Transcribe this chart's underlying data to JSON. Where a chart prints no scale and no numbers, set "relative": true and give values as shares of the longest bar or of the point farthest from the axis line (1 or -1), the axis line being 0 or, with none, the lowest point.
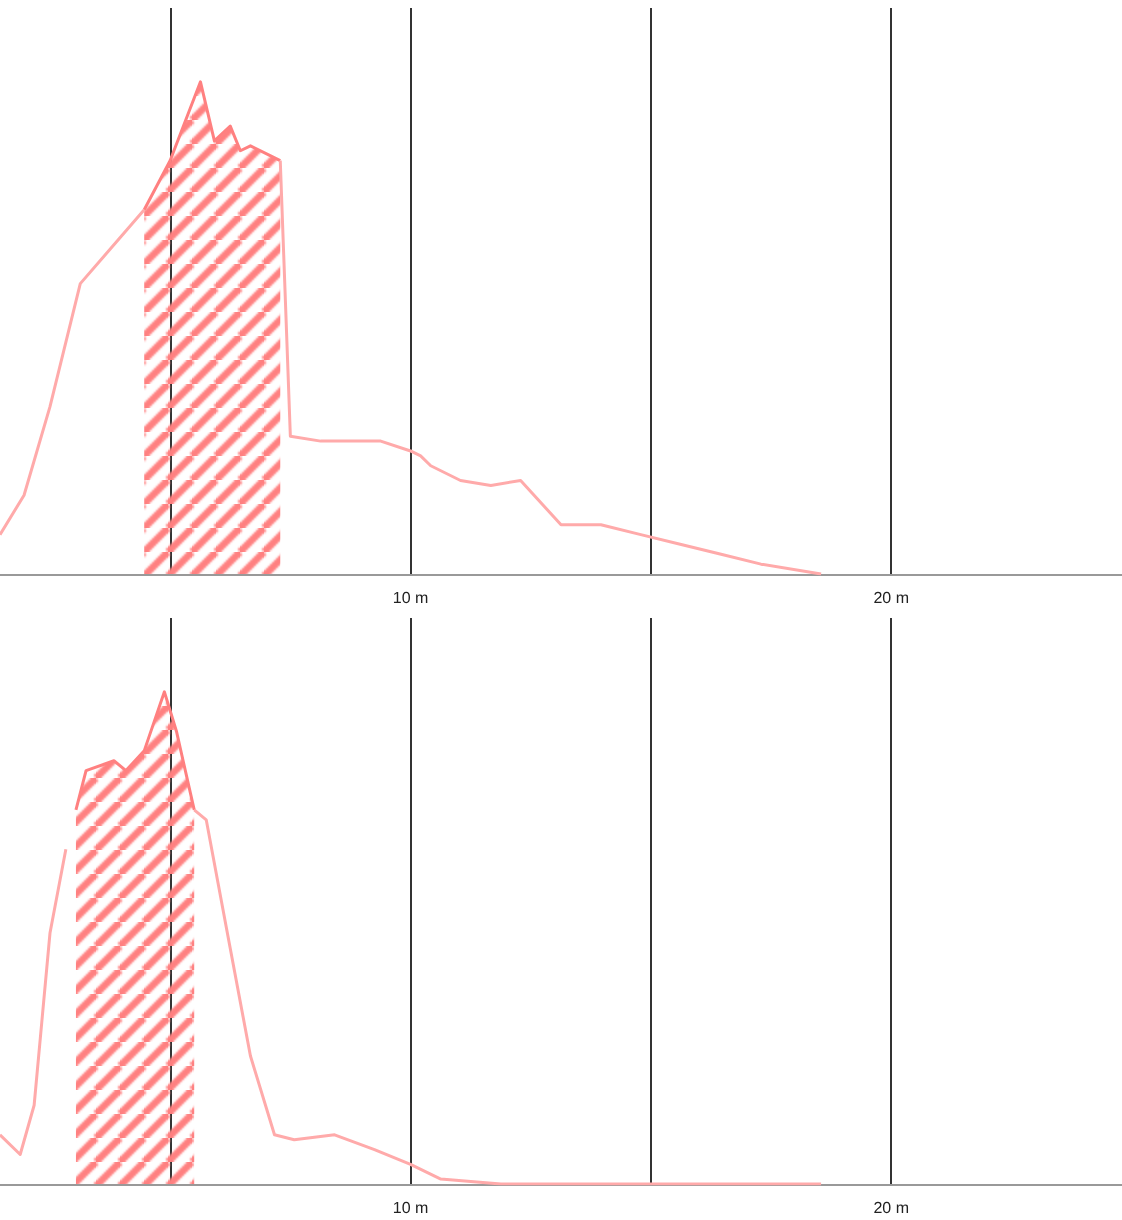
{
  "chart_data": [
    {
      "type": "line",
      "relative": true,
      "xlim": [
        1.46,
        24.8
      ],
      "xticks": [
        {
          "value": 5,
          "label": null
        },
        {
          "value": 10,
          "label": "10 m"
        },
        {
          "value": 15,
          "label": null
        },
        {
          "value": 20,
          "label": "20 m"
        }
      ],
      "grid": "x",
      "marker": "none",
      "line_style": "solid",
      "series": [
        {
          "color": "#ffaaaa",
          "x": [
            1.46,
            1.96,
            2.5,
            3.13,
            4.46,
            5,
            5.63,
            5.92,
            6.25,
            6.46,
            6.67,
            7.08,
            7.29,
            7.5,
            8.13,
            9.38,
            10,
            10.21,
            10.42,
            11.04,
            11.67,
            12.29,
            13.13,
            13.96,
            14.79,
            15.63,
            16.46,
            17.29,
            18.54
          ],
          "values": [
            0.08,
            0.16,
            0.34,
            0.59,
            0.74,
            null,
            null,
            null,
            null,
            null,
            null,
            null,
            0.84,
            0.28,
            0.27,
            0.27,
            0.25,
            0.24,
            0.22,
            0.19,
            0.18,
            0.19,
            0.1,
            0.1,
            0.08,
            0.06,
            0.04,
            0.02,
            0
          ]
        },
        {
          "type": "area",
          "color": "#ff8080",
          "x": [
            4.46,
            5,
            5.63,
            5.92,
            6.25,
            6.46,
            6.67,
            7.08,
            7.29
          ],
          "values": [
            0.74,
            0.84,
            1.0,
            0.88,
            0.91,
            0.86,
            0.87,
            0.85,
            0.84
          ]
        }
      ]
    },
    {
      "type": "line",
      "relative": true,
      "xlim": [
        1.46,
        24.8
      ],
      "xticks": [
        {
          "value": 5,
          "label": null
        },
        {
          "value": 10,
          "label": "10 m"
        },
        {
          "value": 15,
          "label": null
        },
        {
          "value": 20,
          "label": "20 m"
        }
      ],
      "grid": "x",
      "marker": "none",
      "line_style": "solid",
      "series": [
        {
          "color": "#ffaaaa",
          "x": [
            1.46,
            1.88,
            2.17,
            2.5,
            2.83,
            3.25,
            3.83,
            4.08,
            4.46,
            4.88,
            5.13,
            5.5,
            5.75,
            6.17,
            6.67,
            7.17,
            7.58,
            8.42,
            9.25,
            10,
            10.63,
            11.88,
            18.54
          ],
          "values": [
            0.1,
            0.06,
            0.16,
            0.51,
            0.68,
            null,
            null,
            null,
            null,
            null,
            null,
            0.76,
            0.74,
            0.52,
            0.26,
            0.1,
            0.09,
            0.1,
            0.07,
            0.04,
            0.01,
            0,
            0
          ]
        },
        {
          "type": "area",
          "color": "#ff8080",
          "x": [
            3.04,
            3.25,
            3.83,
            4.08,
            4.46,
            4.88,
            5.13,
            5.5
          ],
          "values": [
            0.76,
            0.84,
            0.86,
            0.84,
            0.88,
            1.0,
            0.92,
            0.76
          ]
        }
      ]
    }
  ]
}
